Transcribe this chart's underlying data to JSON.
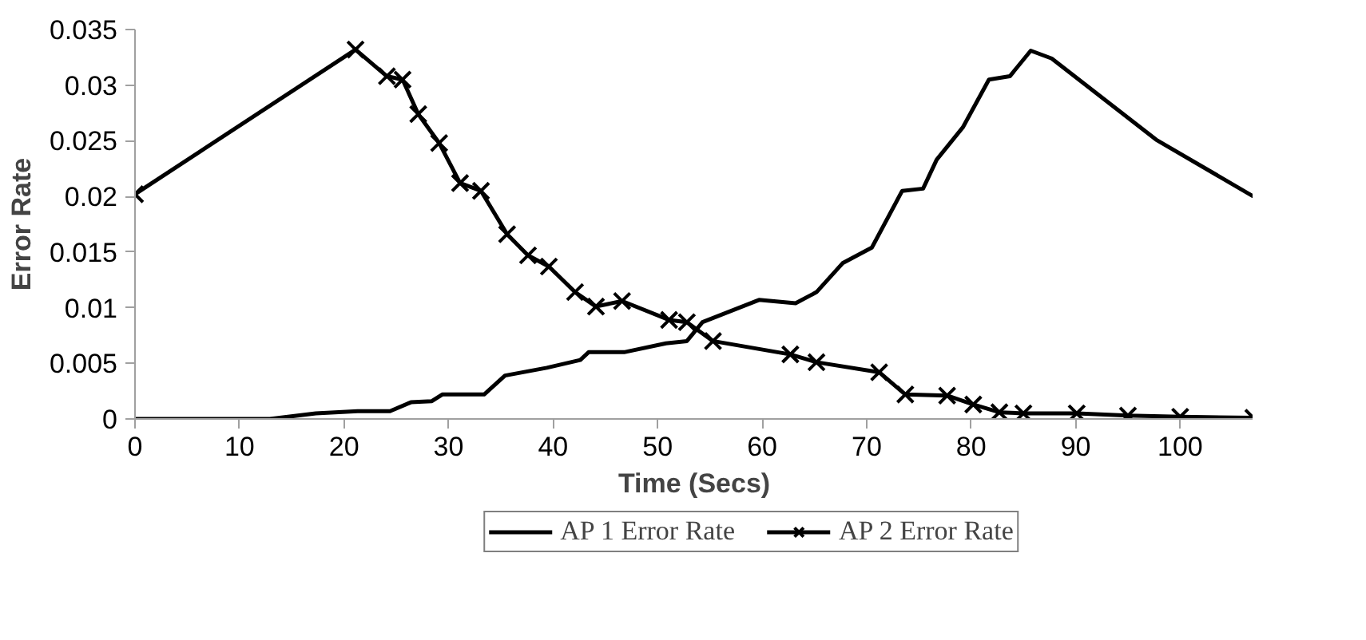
{
  "chart_data": {
    "type": "line",
    "xlabel": "Time (Secs)",
    "ylabel": "Error Rate",
    "xlim": [
      0,
      107
    ],
    "xticks": [
      0,
      10,
      20,
      30,
      40,
      50,
      60,
      70,
      80,
      90,
      100
    ],
    "ylim": [
      0,
      0.035
    ],
    "yticks": [
      0,
      0.005,
      0.01,
      0.015,
      0.02,
      0.025,
      0.03,
      0.035
    ],
    "grid": false,
    "legend": "bottom",
    "series": [
      {
        "name": "AP 1 Error Rate",
        "color": "#000000",
        "marker": "none",
        "x": [
          0,
          12.9,
          17.3,
          21.3,
          24.4,
          26.4,
          28.4,
          29.4,
          33.4,
          35.4,
          39.4,
          42.6,
          43.4,
          46.8,
          50.8,
          52.8,
          54.3,
          59.7,
          63.2,
          65.2,
          67.7,
          70.5,
          73.4,
          75.4,
          76.7,
          79.2,
          81.7,
          83.7,
          85.7,
          87.7,
          97.7,
          107
        ],
        "values": [
          0,
          0,
          0.0005,
          0.0007,
          0.0007,
          0.0015,
          0.0016,
          0.0022,
          0.0022,
          0.0039,
          0.0046,
          0.0053,
          0.006,
          0.006,
          0.0068,
          0.007,
          0.0087,
          0.0107,
          0.0104,
          0.0114,
          0.014,
          0.0154,
          0.0205,
          0.0207,
          0.0233,
          0.0262,
          0.0305,
          0.0308,
          0.0331,
          0.0324,
          0.0251,
          0.02
        ]
      },
      {
        "name": "AP 2 Error Rate",
        "color": "#000000",
        "marker": "cross",
        "x": [
          0,
          21.1,
          24.1,
          25.6,
          27.1,
          29.1,
          31.1,
          33.1,
          35.6,
          37.6,
          39.6,
          42.1,
          44.1,
          46.6,
          51.1,
          52.8,
          55.3,
          62.7,
          65.2,
          71.2,
          73.7,
          77.7,
          80.2,
          82.7,
          85,
          90.1,
          95,
          100,
          107
        ],
        "values": [
          0.0202,
          0.0332,
          0.0308,
          0.0305,
          0.0274,
          0.0248,
          0.0212,
          0.0205,
          0.0166,
          0.0147,
          0.0137,
          0.0114,
          0.0101,
          0.0106,
          0.0089,
          0.0087,
          0.007,
          0.0058,
          0.0051,
          0.0042,
          0.0022,
          0.0021,
          0.0013,
          0.0006,
          0.0005,
          0.0005,
          0.0003,
          0.0002,
          0.0001
        ]
      }
    ]
  }
}
